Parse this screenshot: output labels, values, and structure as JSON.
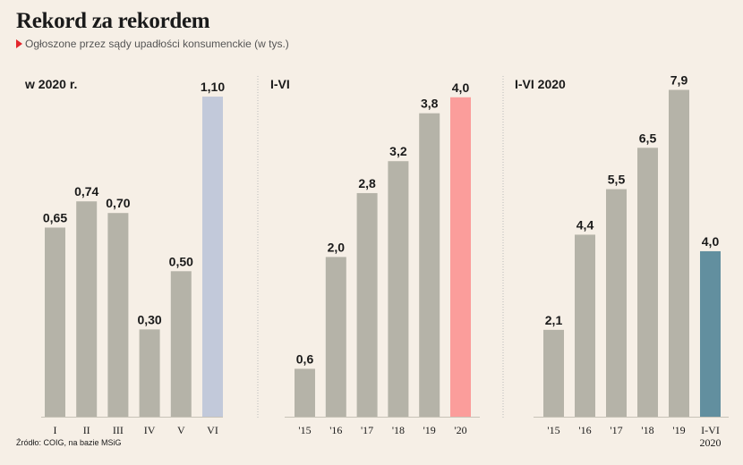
{
  "header": {
    "title": "Rekord za rekordem",
    "subtitle": "Ogłoszone przez sądy upadłości konsumenckie (w tys.)",
    "source": "Źródło: COIG, na bazie MSiG"
  },
  "colors": {
    "background": "#f6efe6",
    "bar_default": "#b5b3a8",
    "bar_highlight_vi": "#c2c9da",
    "bar_highlight_2020": "#fb9d9b",
    "bar_highlight_i_vi_2020": "#628f9f",
    "divider": "#bbbbbb",
    "marker": "#e3262c"
  },
  "chart_data": [
    {
      "type": "bar",
      "title": "w 2020 r.",
      "categories": [
        "I",
        "II",
        "III",
        "IV",
        "V",
        "VI"
      ],
      "values": [
        0.65,
        0.74,
        0.7,
        0.3,
        0.5,
        1.1
      ],
      "labels": [
        "0,65",
        "0,74",
        "0,70",
        "0,30",
        "0,50",
        "1,10"
      ],
      "highlight": [
        false,
        false,
        false,
        false,
        false,
        true
      ],
      "ylim": [
        0,
        1.18
      ]
    },
    {
      "type": "bar",
      "title": "I-VI",
      "categories": [
        "'15",
        "'16",
        "'17",
        "'18",
        "'19",
        "'20"
      ],
      "values": [
        0.6,
        2.0,
        2.8,
        3.2,
        3.8,
        4.0
      ],
      "labels": [
        "0,6",
        "2,0",
        "2,8",
        "3,2",
        "3,8",
        "4,0"
      ],
      "highlight": [
        false,
        false,
        false,
        false,
        false,
        true
      ],
      "ylim": [
        0,
        4.3
      ]
    },
    {
      "type": "bar",
      "title": "I-VI 2020",
      "categories": [
        "'15",
        "'16",
        "'17",
        "'18",
        "'19",
        "I-VI 2020"
      ],
      "values": [
        2.1,
        4.4,
        5.5,
        6.5,
        7.9,
        4.0
      ],
      "labels": [
        "2,1",
        "4,4",
        "5,5",
        "6,5",
        "7,9",
        "4,0"
      ],
      "highlight": [
        false,
        false,
        false,
        false,
        false,
        true
      ],
      "ylim": [
        0,
        8.3
      ]
    }
  ]
}
